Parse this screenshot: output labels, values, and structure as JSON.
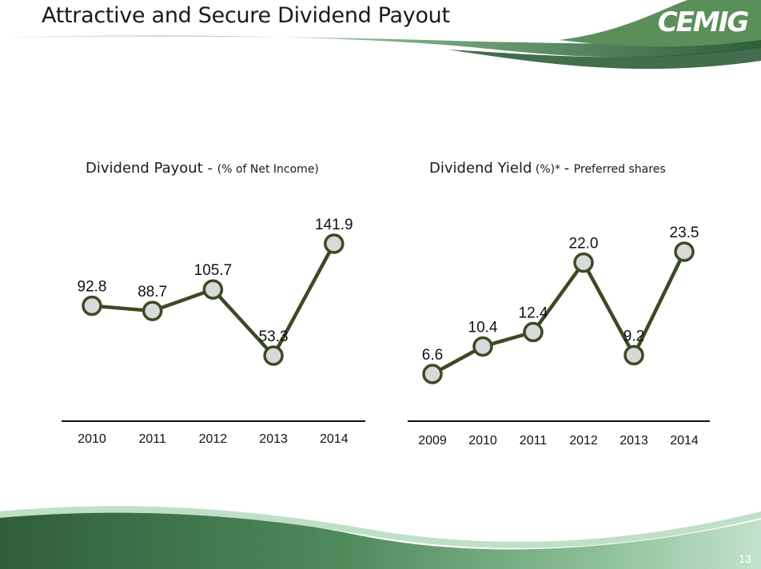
{
  "slide": {
    "title": "Attractive and Secure Dividend Payout",
    "logo_text": "CEMIG",
    "page_number": "13",
    "colors": {
      "band_dark": "#2f5e3a",
      "band_mid": "#4f8a5b",
      "band_light": "#a9d3b6",
      "line": "#3b4a25",
      "marker_fill": "#d9d9d9"
    }
  },
  "charts": {
    "payout": {
      "title": "Dividend Payout",
      "title_sep": " - ",
      "subtitle": "(% of Net Income)"
    },
    "yield": {
      "title": "Dividend Yield",
      "title_mid": " (%)* ",
      "title_sep": "- ",
      "subtitle": "Preferred shares"
    }
  },
  "chart_data": [
    {
      "type": "line",
      "title": "Dividend Payout - (% of Net Income)",
      "x": [
        "2010",
        "2011",
        "2012",
        "2013",
        "2014"
      ],
      "series": [
        {
          "values": [
            92.8,
            88.7,
            105.7,
            53.3,
            141.9
          ]
        }
      ],
      "data_labels": [
        "92.8",
        "88.7",
        "105.7",
        "53.3",
        "141.9"
      ],
      "grid": false
    },
    {
      "type": "line",
      "title": "Dividend Yield (%)* - Preferred shares",
      "x": [
        "2009",
        "2010",
        "2011",
        "2012",
        "2013",
        "2014"
      ],
      "series": [
        {
          "values": [
            6.6,
            10.4,
            12.4,
            22.0,
            9.2,
            23.5
          ]
        }
      ],
      "data_labels": [
        "6.6",
        "10.4",
        "12.4",
        "22.0",
        "9.2",
        "23.5"
      ],
      "grid": false
    }
  ]
}
